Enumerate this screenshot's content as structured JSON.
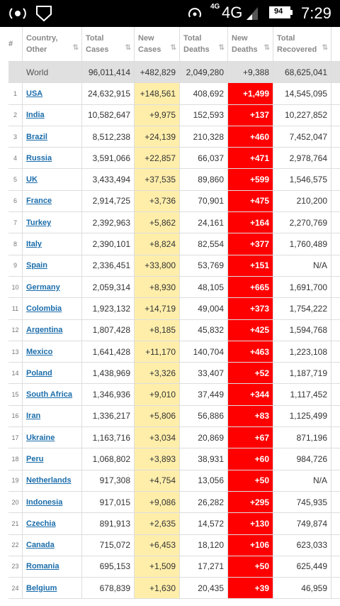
{
  "status_bar": {
    "network_small": "4G",
    "network": "4G",
    "battery": "94",
    "time": "7:29"
  },
  "table": {
    "headers": [
      "#",
      "Country, Other",
      "Total Cases",
      "New Cases",
      "Total Deaths",
      "New Deaths",
      "Total Recovered"
    ],
    "world": [
      "World",
      "96,011,414",
      "+482,829",
      "2,049,280",
      "+9,388",
      "68,625,041"
    ],
    "rows": [
      [
        "1",
        "USA",
        "24,632,915",
        "+148,561",
        "408,692",
        "+1,499",
        "14,545,095"
      ],
      [
        "2",
        "India",
        "10,582,647",
        "+9,975",
        "152,593",
        "+137",
        "10,227,852"
      ],
      [
        "3",
        "Brazil",
        "8,512,238",
        "+24,139",
        "210,328",
        "+460",
        "7,452,047"
      ],
      [
        "4",
        "Russia",
        "3,591,066",
        "+22,857",
        "66,037",
        "+471",
        "2,978,764"
      ],
      [
        "5",
        "UK",
        "3,433,494",
        "+37,535",
        "89,860",
        "+599",
        "1,546,575"
      ],
      [
        "6",
        "France",
        "2,914,725",
        "+3,736",
        "70,901",
        "+475",
        "210,200"
      ],
      [
        "7",
        "Turkey",
        "2,392,963",
        "+5,862",
        "24,161",
        "+164",
        "2,270,769"
      ],
      [
        "8",
        "Italy",
        "2,390,101",
        "+8,824",
        "82,554",
        "+377",
        "1,760,489"
      ],
      [
        "9",
        "Spain",
        "2,336,451",
        "+33,800",
        "53,769",
        "+151",
        "N/A"
      ],
      [
        "10",
        "Germany",
        "2,059,314",
        "+8,930",
        "48,105",
        "+665",
        "1,691,700"
      ],
      [
        "11",
        "Colombia",
        "1,923,132",
        "+14,719",
        "49,004",
        "+373",
        "1,754,222"
      ],
      [
        "12",
        "Argentina",
        "1,807,428",
        "+8,185",
        "45,832",
        "+425",
        "1,594,768"
      ],
      [
        "13",
        "Mexico",
        "1,641,428",
        "+11,170",
        "140,704",
        "+463",
        "1,223,108"
      ],
      [
        "14",
        "Poland",
        "1,438,969",
        "+3,326",
        "33,407",
        "+52",
        "1,187,719"
      ],
      [
        "15",
        "South Africa",
        "1,346,936",
        "+9,010",
        "37,449",
        "+344",
        "1,117,452"
      ],
      [
        "16",
        "Iran",
        "1,336,217",
        "+5,806",
        "56,886",
        "+83",
        "1,125,499"
      ],
      [
        "17",
        "Ukraine",
        "1,163,716",
        "+3,034",
        "20,869",
        "+67",
        "871,196"
      ],
      [
        "18",
        "Peru",
        "1,068,802",
        "+3,893",
        "38,931",
        "+60",
        "984,726"
      ],
      [
        "19",
        "Netherlands",
        "917,308",
        "+4,754",
        "13,056",
        "+50",
        "N/A"
      ],
      [
        "20",
        "Indonesia",
        "917,015",
        "+9,086",
        "26,282",
        "+295",
        "745,935"
      ],
      [
        "21",
        "Czechia",
        "891,913",
        "+2,635",
        "14,572",
        "+130",
        "749,874"
      ],
      [
        "22",
        "Canada",
        "715,072",
        "+6,453",
        "18,120",
        "+106",
        "623,033"
      ],
      [
        "23",
        "Romania",
        "695,153",
        "+1,509",
        "17,271",
        "+50",
        "625,449"
      ],
      [
        "24",
        "Belgium",
        "678,839",
        "+1,630",
        "20,435",
        "+39",
        "46,959"
      ]
    ]
  }
}
